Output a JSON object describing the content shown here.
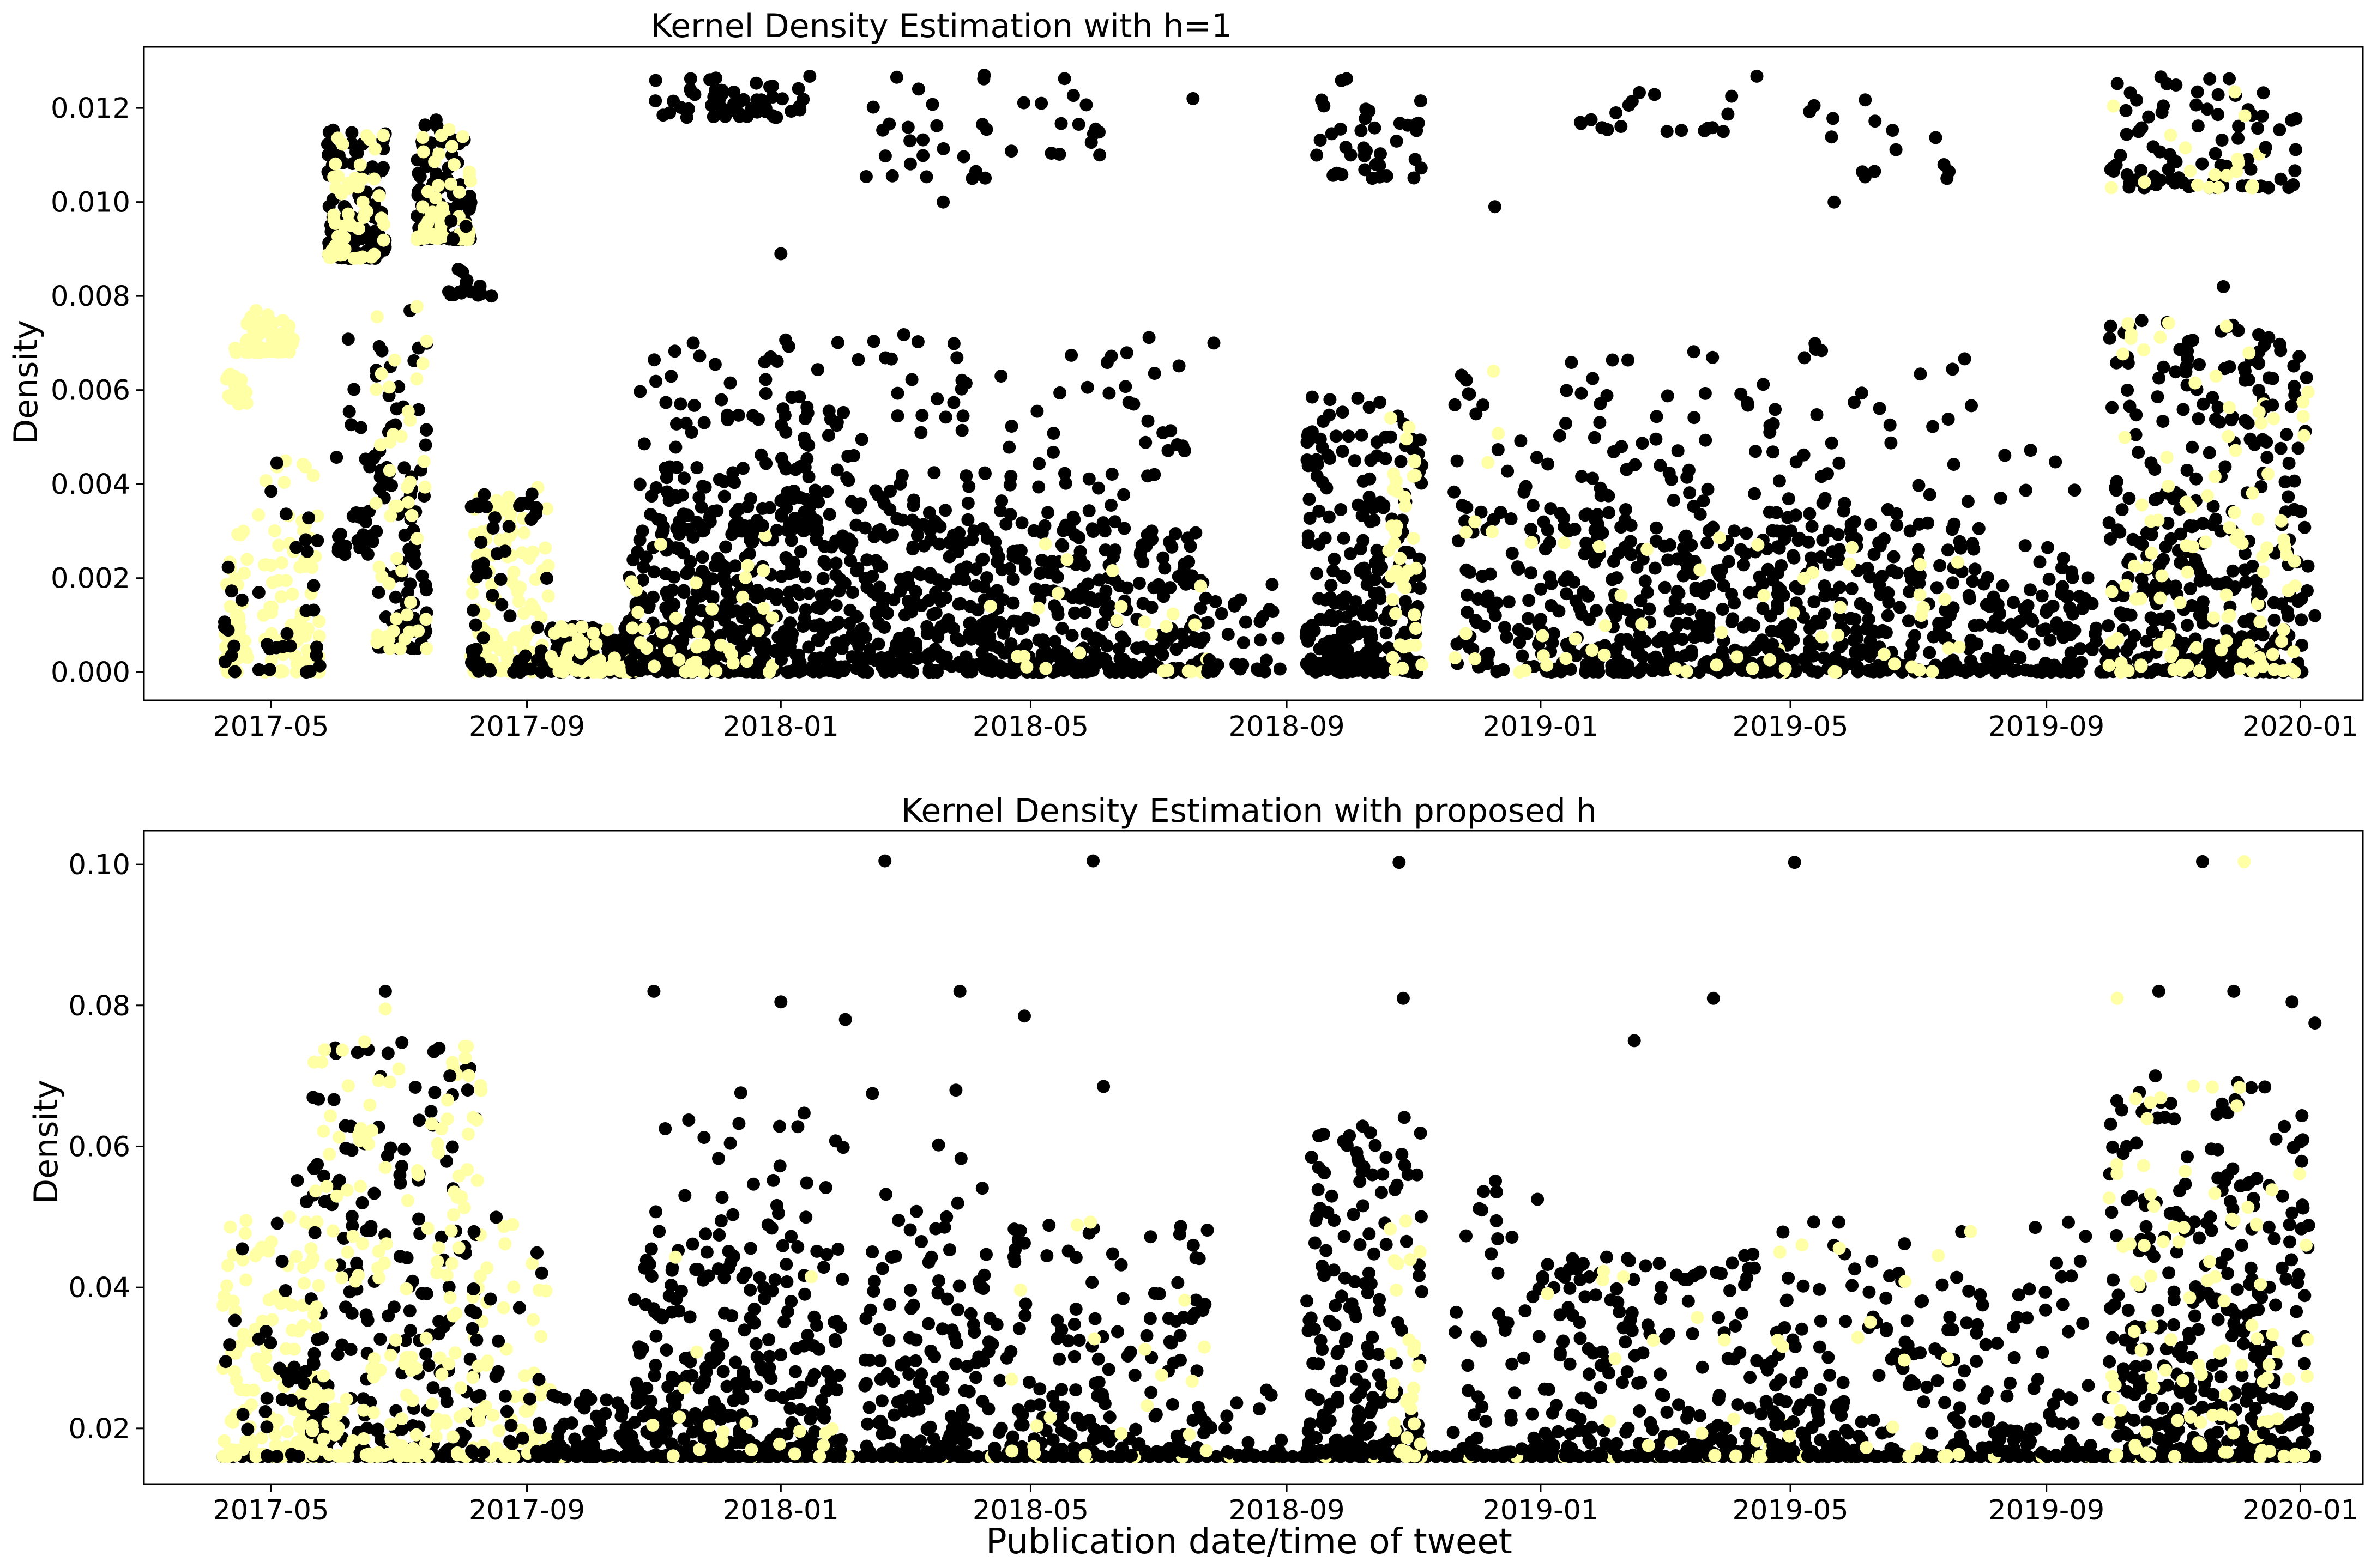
{
  "chart_data": [
    {
      "type": "scatter",
      "title": "Kernel Density Estimation with h=1",
      "xlabel": "",
      "ylabel": "Density",
      "x_axis": "date",
      "xlim": [
        "2017-03-01",
        "2020-01-31"
      ],
      "ylim": [
        -0.0006,
        0.0133
      ],
      "grid": false,
      "legend": "none",
      "xtick_labels": [
        "2017-05",
        "2017-09",
        "2018-01",
        "2018-05",
        "2018-09",
        "2019-01",
        "2019-05",
        "2019-09",
        "2020-01"
      ],
      "ytick_labels": [
        "0.000",
        "0.002",
        "0.004",
        "0.006",
        "0.008",
        "0.010",
        "0.012"
      ],
      "yticks": [
        0.0,
        0.002,
        0.004,
        0.006,
        0.008,
        0.01,
        0.012
      ],
      "colors": {
        "black": "#000000",
        "yellow": "#ffffa6"
      },
      "clusters": [
        {
          "x0": "2017-04-08",
          "x1": "2017-04-20",
          "y0": 0.0,
          "y1": 0.003,
          "n": 40,
          "color": "yellow"
        },
        {
          "x0": "2017-04-08",
          "x1": "2017-04-20",
          "y0": 0.0,
          "y1": 0.003,
          "n": 10,
          "color": "black"
        },
        {
          "x0": "2017-04-08",
          "x1": "2017-04-20",
          "y0": 0.0057,
          "y1": 0.0069,
          "n": 20,
          "color": "yellow"
        },
        {
          "x0": "2017-04-18",
          "x1": "2017-05-12",
          "y0": 0.0068,
          "y1": 0.0077,
          "n": 60,
          "color": "yellow"
        },
        {
          "x0": "2017-04-25",
          "x1": "2017-05-25",
          "y0": 0.0,
          "y1": 0.0045,
          "n": 80,
          "color": "yellow"
        },
        {
          "x0": "2017-04-25",
          "x1": "2017-05-25",
          "y0": 0.0,
          "y1": 0.0045,
          "n": 25,
          "color": "black"
        },
        {
          "x0": "2017-05-28",
          "x1": "2017-06-25",
          "y0": 0.0088,
          "y1": 0.0117,
          "n": 120,
          "color": "black"
        },
        {
          "x0": "2017-05-28",
          "x1": "2017-06-25",
          "y0": 0.0088,
          "y1": 0.0117,
          "n": 50,
          "color": "yellow"
        },
        {
          "x0": "2017-06-01",
          "x1": "2017-06-20",
          "y0": 0.0025,
          "y1": 0.0072,
          "n": 30,
          "color": "black"
        },
        {
          "x0": "2017-06-20",
          "x1": "2017-07-15",
          "y0": 0.0005,
          "y1": 0.0078,
          "n": 90,
          "color": "black"
        },
        {
          "x0": "2017-06-20",
          "x1": "2017-07-15",
          "y0": 0.0005,
          "y1": 0.0078,
          "n": 50,
          "color": "yellow"
        },
        {
          "x0": "2017-07-10",
          "x1": "2017-08-05",
          "y0": 0.0092,
          "y1": 0.0118,
          "n": 100,
          "color": "black"
        },
        {
          "x0": "2017-07-10",
          "x1": "2017-08-05",
          "y0": 0.0092,
          "y1": 0.0118,
          "n": 50,
          "color": "yellow"
        },
        {
          "x0": "2017-07-25",
          "x1": "2017-08-10",
          "y0": 0.008,
          "y1": 0.0103,
          "n": 20,
          "color": "black"
        },
        {
          "x0": "2017-08-05",
          "x1": "2017-09-12",
          "y0": 0.0,
          "y1": 0.004,
          "n": 120,
          "color": "yellow"
        },
        {
          "x0": "2017-08-05",
          "x1": "2017-09-12",
          "y0": 0.0,
          "y1": 0.004,
          "n": 60,
          "color": "black"
        },
        {
          "x0": "2017-09-12",
          "x1": "2017-10-25",
          "y0": 0.0,
          "y1": 0.001,
          "n": 100,
          "color": "black"
        },
        {
          "x0": "2017-09-12",
          "x1": "2017-10-25",
          "y0": 0.0,
          "y1": 0.001,
          "n": 50,
          "color": "yellow"
        },
        {
          "x0": "2017-10-20",
          "x1": "2017-12-31",
          "y0": 0.0,
          "y1": 0.003,
          "n": 320,
          "color": "black"
        },
        {
          "x0": "2017-10-20",
          "x1": "2017-12-31",
          "y0": 0.0,
          "y1": 0.003,
          "n": 40,
          "color": "yellow"
        },
        {
          "x0": "2017-10-25",
          "x1": "2018-01-20",
          "y0": 0.003,
          "y1": 0.007,
          "n": 140,
          "color": "black"
        },
        {
          "x0": "2017-11-01",
          "x1": "2018-01-15",
          "y0": 0.0118,
          "y1": 0.0127,
          "n": 60,
          "color": "black"
        },
        {
          "x0": "2018-01-01",
          "x1": "2018-04-10",
          "y0": 0.0,
          "y1": 0.003,
          "n": 300,
          "color": "black"
        },
        {
          "x0": "2018-01-01",
          "x1": "2018-04-10",
          "y0": 0.003,
          "y1": 0.0072,
          "n": 90,
          "color": "black"
        },
        {
          "x0": "2018-02-10",
          "x1": "2018-04-10",
          "y0": 0.0105,
          "y1": 0.0127,
          "n": 25,
          "color": "black"
        },
        {
          "x0": "2018-04-10",
          "x1": "2018-07-25",
          "y0": 0.0,
          "y1": 0.003,
          "n": 300,
          "color": "black"
        },
        {
          "x0": "2018-04-10",
          "x1": "2018-07-25",
          "y0": 0.0,
          "y1": 0.003,
          "n": 25,
          "color": "yellow"
        },
        {
          "x0": "2018-04-15",
          "x1": "2018-07-15",
          "y0": 0.003,
          "y1": 0.0072,
          "n": 60,
          "color": "black"
        },
        {
          "x0": "2018-04-20",
          "x1": "2018-06-15",
          "y0": 0.011,
          "y1": 0.0127,
          "n": 15,
          "color": "black"
        },
        {
          "x0": "2018-07-25",
          "x1": "2018-08-30",
          "y0": 0.0,
          "y1": 0.002,
          "n": 30,
          "color": "black"
        },
        {
          "x0": "2018-09-10",
          "x1": "2018-11-05",
          "y0": 0.0,
          "y1": 0.006,
          "n": 260,
          "color": "black"
        },
        {
          "x0": "2018-10-20",
          "x1": "2018-11-05",
          "y0": 0.0,
          "y1": 0.006,
          "n": 40,
          "color": "yellow"
        },
        {
          "x0": "2018-09-15",
          "x1": "2018-11-05",
          "y0": 0.0105,
          "y1": 0.0127,
          "n": 40,
          "color": "black"
        },
        {
          "x0": "2018-11-20",
          "x1": "2019-01-01",
          "y0": 0.0,
          "y1": 0.0065,
          "n": 80,
          "color": "black"
        },
        {
          "x0": "2018-11-20",
          "x1": "2019-01-01",
          "y0": 0.0,
          "y1": 0.0065,
          "n": 12,
          "color": "yellow"
        },
        {
          "x0": "2019-01-01",
          "x1": "2019-04-30",
          "y0": 0.0,
          "y1": 0.003,
          "n": 280,
          "color": "black"
        },
        {
          "x0": "2019-01-01",
          "x1": "2019-04-30",
          "y0": 0.003,
          "y1": 0.0073,
          "n": 80,
          "color": "black"
        },
        {
          "x0": "2019-01-01",
          "x1": "2019-04-30",
          "y0": 0.0,
          "y1": 0.003,
          "n": 25,
          "color": "yellow"
        },
        {
          "x0": "2019-01-10",
          "x1": "2019-04-15",
          "y0": 0.0115,
          "y1": 0.0127,
          "n": 20,
          "color": "black"
        },
        {
          "x0": "2019-04-20",
          "x1": "2019-07-31",
          "y0": 0.0,
          "y1": 0.003,
          "n": 230,
          "color": "black"
        },
        {
          "x0": "2019-04-20",
          "x1": "2019-07-31",
          "y0": 0.003,
          "y1": 0.0072,
          "n": 55,
          "color": "black"
        },
        {
          "x0": "2019-04-20",
          "x1": "2019-07-31",
          "y0": 0.0,
          "y1": 0.003,
          "n": 25,
          "color": "yellow"
        },
        {
          "x0": "2019-04-25",
          "x1": "2019-07-31",
          "y0": 0.0105,
          "y1": 0.0127,
          "n": 15,
          "color": "black"
        },
        {
          "x0": "2019-07-31",
          "x1": "2019-10-01",
          "y0": 0.0,
          "y1": 0.002,
          "n": 100,
          "color": "black"
        },
        {
          "x0": "2019-07-31",
          "x1": "2019-10-01",
          "y0": 0.002,
          "y1": 0.0066,
          "n": 15,
          "color": "black"
        },
        {
          "x0": "2019-10-01",
          "x1": "2019-12-15",
          "y0": 0.0,
          "y1": 0.0075,
          "n": 300,
          "color": "black"
        },
        {
          "x0": "2019-10-01",
          "x1": "2019-12-15",
          "y0": 0.0,
          "y1": 0.0075,
          "n": 80,
          "color": "yellow"
        },
        {
          "x0": "2019-10-01",
          "x1": "2019-12-15",
          "y0": 0.0103,
          "y1": 0.0127,
          "n": 80,
          "color": "black"
        },
        {
          "x0": "2019-10-01",
          "x1": "2019-12-15",
          "y0": 0.0103,
          "y1": 0.0127,
          "n": 20,
          "color": "yellow"
        },
        {
          "x0": "2019-12-12",
          "x1": "2020-01-05",
          "y0": 0.0,
          "y1": 0.0075,
          "n": 70,
          "color": "black"
        },
        {
          "x0": "2019-12-12",
          "x1": "2020-01-05",
          "y0": 0.0,
          "y1": 0.0075,
          "n": 30,
          "color": "yellow"
        },
        {
          "x0": "2019-12-15",
          "x1": "2020-01-01",
          "y0": 0.0103,
          "y1": 0.0127,
          "n": 10,
          "color": "black"
        }
      ],
      "points": [
        {
          "x": "2017-08-15",
          "y": 0.008,
          "color": "black"
        },
        {
          "x": "2018-01-01",
          "y": 0.0089,
          "color": "black"
        },
        {
          "x": "2018-03-20",
          "y": 0.01,
          "color": "black"
        },
        {
          "x": "2018-12-10",
          "y": 0.0099,
          "color": "black"
        },
        {
          "x": "2019-05-22",
          "y": 0.01,
          "color": "black"
        },
        {
          "x": "2019-11-25",
          "y": 0.0082,
          "color": "black"
        },
        {
          "x": "2020-01-08",
          "y": 0.0012,
          "color": "black"
        },
        {
          "x": "2018-07-18",
          "y": 0.0122,
          "color": "black"
        },
        {
          "x": "2018-07-28",
          "y": 0.007,
          "color": "black"
        }
      ]
    },
    {
      "type": "scatter",
      "title": "Kernel Density Estimation with proposed h",
      "xlabel": "Publication date/time of tweet",
      "ylabel": "Density",
      "x_axis": "date",
      "xlim": [
        "2017-03-01",
        "2020-01-31"
      ],
      "ylim": [
        0.0121,
        0.1048
      ],
      "grid": false,
      "legend": "none",
      "xtick_labels": [
        "2017-05",
        "2017-09",
        "2018-01",
        "2018-05",
        "2018-09",
        "2019-01",
        "2019-05",
        "2019-09",
        "2020-01"
      ],
      "ytick_labels": [
        "0.02",
        "0.04",
        "0.06",
        "0.08",
        "0.10"
      ],
      "yticks": [
        0.02,
        0.04,
        0.06,
        0.08,
        0.1
      ],
      "colors": {
        "black": "#000000",
        "yellow": "#ffffa6"
      },
      "baseline": {
        "y": 0.016,
        "x0": "2017-04-08",
        "x1": "2020-01-08",
        "n": 220
      },
      "clusters": [
        {
          "x0": "2017-04-08",
          "x1": "2017-05-25",
          "y0": 0.016,
          "y1": 0.05,
          "n": 150,
          "color": "yellow"
        },
        {
          "x0": "2017-04-08",
          "x1": "2017-05-25",
          "y0": 0.016,
          "y1": 0.07,
          "n": 40,
          "color": "black"
        },
        {
          "x0": "2017-05-20",
          "x1": "2017-08-10",
          "y0": 0.016,
          "y1": 0.075,
          "n": 200,
          "color": "black"
        },
        {
          "x0": "2017-05-20",
          "x1": "2017-08-10",
          "y0": 0.016,
          "y1": 0.075,
          "n": 180,
          "color": "yellow"
        },
        {
          "x0": "2017-08-05",
          "x1": "2017-09-12",
          "y0": 0.016,
          "y1": 0.05,
          "n": 60,
          "color": "yellow"
        },
        {
          "x0": "2017-08-05",
          "x1": "2017-09-12",
          "y0": 0.016,
          "y1": 0.05,
          "n": 30,
          "color": "black"
        },
        {
          "x0": "2017-09-12",
          "x1": "2017-10-25",
          "y0": 0.016,
          "y1": 0.025,
          "n": 60,
          "color": "black"
        },
        {
          "x0": "2017-10-20",
          "x1": "2018-01-31",
          "y0": 0.016,
          "y1": 0.045,
          "n": 300,
          "color": "black"
        },
        {
          "x0": "2017-10-25",
          "x1": "2018-01-31",
          "y0": 0.045,
          "y1": 0.068,
          "n": 40,
          "color": "black"
        },
        {
          "x0": "2017-10-25",
          "x1": "2018-01-31",
          "y0": 0.016,
          "y1": 0.045,
          "n": 20,
          "color": "yellow"
        },
        {
          "x0": "2018-02-10",
          "x1": "2018-04-10",
          "y0": 0.016,
          "y1": 0.045,
          "n": 140,
          "color": "black"
        },
        {
          "x0": "2018-02-10",
          "x1": "2018-04-10",
          "y0": 0.045,
          "y1": 0.068,
          "n": 15,
          "color": "black"
        },
        {
          "x0": "2018-04-10",
          "x1": "2018-07-25",
          "y0": 0.016,
          "y1": 0.05,
          "n": 180,
          "color": "black"
        },
        {
          "x0": "2018-04-10",
          "x1": "2018-07-25",
          "y0": 0.016,
          "y1": 0.05,
          "n": 20,
          "color": "yellow"
        },
        {
          "x0": "2018-07-25",
          "x1": "2018-08-30",
          "y0": 0.016,
          "y1": 0.03,
          "n": 20,
          "color": "black"
        },
        {
          "x0": "2018-09-10",
          "x1": "2018-11-05",
          "y0": 0.016,
          "y1": 0.065,
          "n": 200,
          "color": "black"
        },
        {
          "x0": "2018-10-20",
          "x1": "2018-11-05",
          "y0": 0.016,
          "y1": 0.06,
          "n": 30,
          "color": "yellow"
        },
        {
          "x0": "2018-11-20",
          "x1": "2019-01-01",
          "y0": 0.016,
          "y1": 0.058,
          "n": 60,
          "color": "black"
        },
        {
          "x0": "2019-01-01",
          "x1": "2019-04-30",
          "y0": 0.016,
          "y1": 0.045,
          "n": 220,
          "color": "black"
        },
        {
          "x0": "2019-01-01",
          "x1": "2019-04-30",
          "y0": 0.016,
          "y1": 0.045,
          "n": 20,
          "color": "yellow"
        },
        {
          "x0": "2019-04-20",
          "x1": "2019-07-31",
          "y0": 0.016,
          "y1": 0.05,
          "n": 160,
          "color": "black"
        },
        {
          "x0": "2019-04-20",
          "x1": "2019-07-31",
          "y0": 0.016,
          "y1": 0.05,
          "n": 20,
          "color": "yellow"
        },
        {
          "x0": "2019-07-31",
          "x1": "2019-10-01",
          "y0": 0.016,
          "y1": 0.05,
          "n": 80,
          "color": "black"
        },
        {
          "x0": "2019-10-01",
          "x1": "2019-12-15",
          "y0": 0.016,
          "y1": 0.07,
          "n": 300,
          "color": "black"
        },
        {
          "x0": "2019-10-01",
          "x1": "2019-12-15",
          "y0": 0.016,
          "y1": 0.07,
          "n": 80,
          "color": "yellow"
        },
        {
          "x0": "2019-12-12",
          "x1": "2020-01-05",
          "y0": 0.016,
          "y1": 0.065,
          "n": 70,
          "color": "black"
        },
        {
          "x0": "2019-12-12",
          "x1": "2020-01-05",
          "y0": 0.016,
          "y1": 0.065,
          "n": 20,
          "color": "yellow"
        }
      ],
      "points": [
        {
          "x": "2018-02-20",
          "y": 0.1005,
          "color": "black"
        },
        {
          "x": "2018-05-31",
          "y": 0.1005,
          "color": "black"
        },
        {
          "x": "2018-10-25",
          "y": 0.1003,
          "color": "black"
        },
        {
          "x": "2019-05-03",
          "y": 0.1003,
          "color": "black"
        },
        {
          "x": "2019-11-15",
          "y": 0.1004,
          "color": "black"
        },
        {
          "x": "2019-12-05",
          "y": 0.1004,
          "color": "yellow"
        },
        {
          "x": "2017-11-01",
          "y": 0.082,
          "color": "black"
        },
        {
          "x": "2018-01-01",
          "y": 0.0805,
          "color": "black"
        },
        {
          "x": "2018-02-01",
          "y": 0.078,
          "color": "black"
        },
        {
          "x": "2018-03-28",
          "y": 0.082,
          "color": "black"
        },
        {
          "x": "2018-04-28",
          "y": 0.0785,
          "color": "black"
        },
        {
          "x": "2018-10-27",
          "y": 0.081,
          "color": "black"
        },
        {
          "x": "2019-03-25",
          "y": 0.081,
          "color": "black"
        },
        {
          "x": "2019-10-05",
          "y": 0.081,
          "color": "yellow"
        },
        {
          "x": "2019-10-25",
          "y": 0.082,
          "color": "black"
        },
        {
          "x": "2019-11-30",
          "y": 0.082,
          "color": "black"
        },
        {
          "x": "2019-12-28",
          "y": 0.0805,
          "color": "black"
        },
        {
          "x": "2020-01-08",
          "y": 0.0775,
          "color": "black"
        },
        {
          "x": "2017-06-25",
          "y": 0.082,
          "color": "black"
        },
        {
          "x": "2017-06-25",
          "y": 0.0795,
          "color": "yellow"
        },
        {
          "x": "2017-07-26",
          "y": 0.07,
          "color": "black"
        },
        {
          "x": "2018-02-14",
          "y": 0.0675,
          "color": "black"
        },
        {
          "x": "2018-06-05",
          "y": 0.0685,
          "color": "black"
        },
        {
          "x": "2019-02-15",
          "y": 0.075,
          "color": "black"
        }
      ]
    }
  ]
}
